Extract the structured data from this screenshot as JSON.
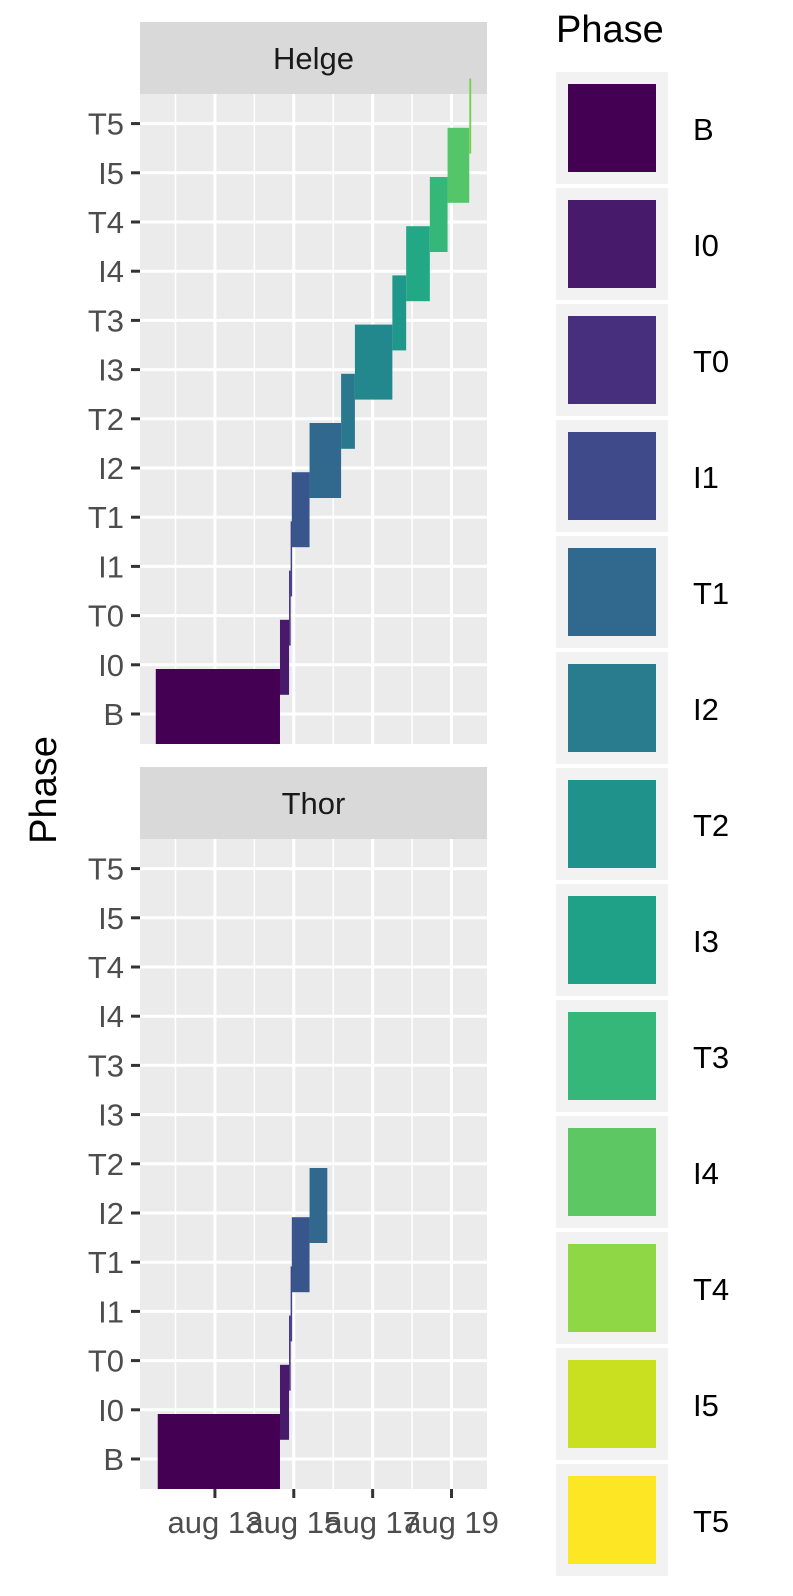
{
  "chart_data": {
    "type": "bar",
    "orientation": "horizontal",
    "ylabel": "Phase",
    "xlabel": "",
    "legend": {
      "title": "Phase",
      "placement": "right"
    },
    "phases": [
      "B",
      "I0",
      "T0",
      "I1",
      "T1",
      "I2",
      "T2",
      "I3",
      "T3",
      "I4",
      "T4",
      "I5",
      "T5"
    ],
    "colors": [
      "#440154",
      "#481A6C",
      "#472F7D",
      "#414487",
      "#39568C",
      "#31688E",
      "#2A788E",
      "#23888E",
      "#1F988B",
      "#22A884",
      "#35B779",
      "#54C568",
      "#7AD151",
      "#A5DB36",
      "#D2E21B",
      "#FDE725"
    ],
    "phase_colors": {
      "B": "#440154",
      "I0": "#481A6C",
      "T0": "#472F7D",
      "I1": "#414487",
      "T1": "#39568C",
      "I2": "#31688E",
      "T2": "#2A788E",
      "I3": "#23888E",
      "T3": "#1F988B",
      "I4": "#22A884",
      "T4": "#35B779",
      "I5": "#54C568",
      "T5": "#7AD151"
    },
    "legend_colors": [
      "#440154",
      "#481A6C",
      "#472F7D",
      "#3E4A89",
      "#31688E",
      "#287C8E",
      "#20928C",
      "#1FA187",
      "#35B779",
      "#5DC863",
      "#8FD744",
      "#C8E020",
      "#FDE725"
    ],
    "x_ticks": [
      "aug 13",
      "aug 15",
      "aug 17",
      "aug 19"
    ],
    "x_tick_days": [
      13,
      15,
      17,
      19
    ],
    "xlim": [
      11.1,
      19.9
    ],
    "facets": [
      {
        "name": "Helge",
        "tasks": [
          {
            "phase": "B",
            "start": 11.5,
            "end": 14.65
          },
          {
            "phase": "I0",
            "start": 14.65,
            "end": 14.88
          },
          {
            "phase": "T0",
            "start": 14.88,
            "end": 14.92
          },
          {
            "phase": "I1",
            "start": 14.92,
            "end": 14.95
          },
          {
            "phase": "T1",
            "start": 14.95,
            "end": 15.4
          },
          {
            "phase": "I2",
            "start": 15.4,
            "end": 16.2
          },
          {
            "phase": "T2",
            "start": 16.2,
            "end": 16.55
          },
          {
            "phase": "I3",
            "start": 16.55,
            "end": 17.5
          },
          {
            "phase": "T3",
            "start": 17.5,
            "end": 17.85
          },
          {
            "phase": "I4",
            "start": 17.85,
            "end": 18.45
          },
          {
            "phase": "T4",
            "start": 18.45,
            "end": 18.9
          },
          {
            "phase": "I5",
            "start": 18.9,
            "end": 19.45
          },
          {
            "phase": "T5",
            "start": 19.45,
            "end": 19.5
          }
        ]
      },
      {
        "name": "Thor",
        "tasks": [
          {
            "phase": "B",
            "start": 11.55,
            "end": 14.65
          },
          {
            "phase": "I0",
            "start": 14.65,
            "end": 14.88
          },
          {
            "phase": "T0",
            "start": 14.88,
            "end": 14.92
          },
          {
            "phase": "I1",
            "start": 14.92,
            "end": 14.95
          },
          {
            "phase": "T1",
            "start": 14.95,
            "end": 15.4
          },
          {
            "phase": "I2",
            "start": 15.4,
            "end": 15.85
          }
        ]
      }
    ]
  }
}
